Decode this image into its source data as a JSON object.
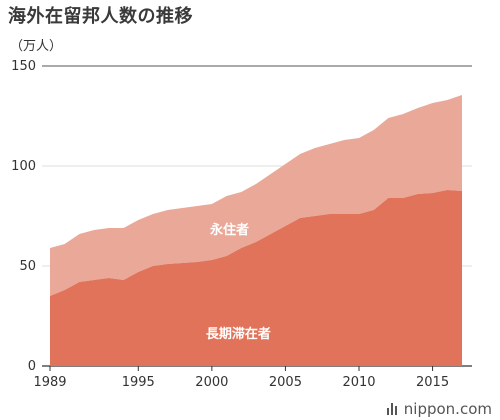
{
  "title": "海外在留邦人数の推移",
  "brand": "nippon.com",
  "colors": {
    "permanent": "#EAA898",
    "long_term": "#E0735A",
    "grid": "#dddddd",
    "axis": "#333333"
  },
  "chart_data": {
    "type": "area",
    "stacked": true,
    "title": "海外在留邦人数の推移",
    "ylabel": "（万人）",
    "xlim": [
      1989,
      2017
    ],
    "ylim": [
      0,
      150
    ],
    "yticks": [
      0,
      50,
      100,
      150
    ],
    "xticks": [
      1989,
      1995,
      2000,
      2005,
      2010,
      2015
    ],
    "grid": true,
    "x": [
      1989,
      1990,
      1991,
      1992,
      1993,
      1994,
      1995,
      1996,
      1997,
      1998,
      1999,
      2000,
      2001,
      2002,
      2003,
      2004,
      2005,
      2006,
      2007,
      2008,
      2009,
      2010,
      2011,
      2012,
      2013,
      2014,
      2015,
      2016,
      2017
    ],
    "series": [
      {
        "name": "長期滞在者",
        "values": [
          35,
          38,
          42,
          43,
          44,
          43,
          47,
          50,
          51,
          51.5,
          52,
          53,
          55,
          59,
          62,
          66,
          70,
          74,
          75,
          76,
          76,
          76,
          78,
          84,
          84,
          86,
          86.5,
          88,
          87.5
        ]
      },
      {
        "name": "永住者",
        "values": [
          24,
          23,
          24,
          25,
          25,
          26,
          26,
          26,
          27,
          27.5,
          28,
          28,
          30,
          28,
          29,
          30,
          31,
          32,
          34,
          35,
          37,
          38,
          40,
          40,
          42,
          43,
          45,
          45,
          48
        ]
      }
    ]
  }
}
